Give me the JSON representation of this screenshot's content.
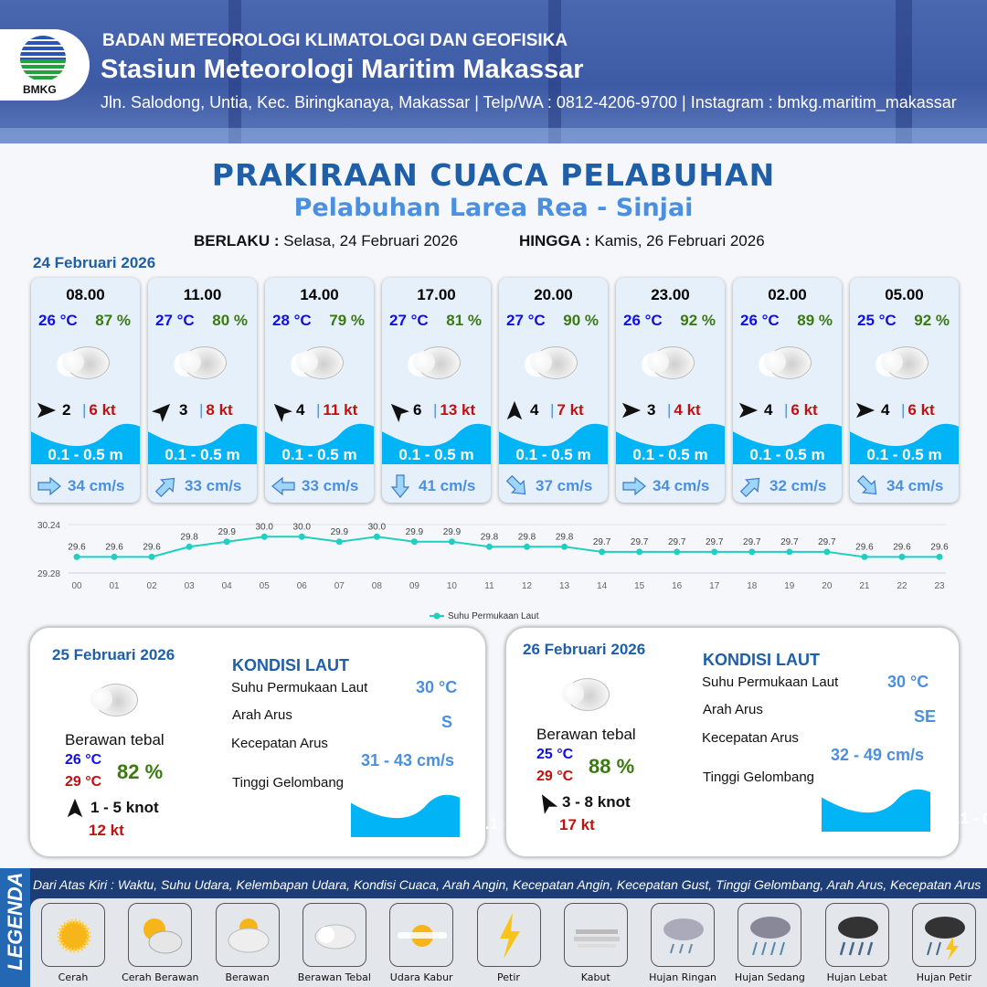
{
  "header": {
    "agency": "BADAN METEOROLOGI KLIMATOLOGI DAN GEOFISIKA",
    "station": "Stasiun Meteorologi Maritim Makassar",
    "contact": "Jln. Salodong, Untia, Kec. Biringkanaya, Makassar | Telp/WA : 0812-4206-9700 | Instagram : bmkg.maritim_makassar",
    "logo_text": "BMKG"
  },
  "title": "PRAKIRAAN CUACA PELABUHAN",
  "subtitle": "Pelabuhan Larea Rea - Sinjai",
  "validity": {
    "from_label": "BERLAKU :",
    "from": "Selasa, 24 Februari 2026",
    "to_label": "HINGGA :",
    "to": "Kamis, 26 Februari 2026"
  },
  "day1": {
    "date": "24 Februari 2026",
    "condition_icon": "cloud-icon",
    "forecasts": [
      {
        "time": "08.00",
        "temp": "26 °C",
        "rh": "87 %",
        "wind_dir_deg": 0,
        "wind": "2",
        "gust": "6 kt",
        "wave": "0.1 - 0.5 m",
        "current_dir_deg": 0,
        "current": "34 cm/s"
      },
      {
        "time": "11.00",
        "temp": "27 °C",
        "rh": "80 %",
        "wind_dir_deg": -45,
        "wind": "3",
        "gust": "8 kt",
        "wave": "0.1 - 0.5 m",
        "current_dir_deg": -45,
        "current": "33 cm/s"
      },
      {
        "time": "14.00",
        "temp": "28 °C",
        "rh": "79 %",
        "wind_dir_deg": -135,
        "wind": "4",
        "gust": "11 kt",
        "wave": "0.1 - 0.5 m",
        "current_dir_deg": 180,
        "current": "33 cm/s"
      },
      {
        "time": "17.00",
        "temp": "27 °C",
        "rh": "81 %",
        "wind_dir_deg": -135,
        "wind": "6",
        "gust": "13 kt",
        "wave": "0.1 - 0.5 m",
        "current_dir_deg": 90,
        "current": "41 cm/s"
      },
      {
        "time": "20.00",
        "temp": "27 °C",
        "rh": "90 %",
        "wind_dir_deg": -90,
        "wind": "4",
        "gust": "7 kt",
        "wave": "0.1 - 0.5 m",
        "current_dir_deg": 45,
        "current": "37 cm/s"
      },
      {
        "time": "23.00",
        "temp": "26 °C",
        "rh": "92 %",
        "wind_dir_deg": 0,
        "wind": "3",
        "gust": "4 kt",
        "wave": "0.1 - 0.5 m",
        "current_dir_deg": 0,
        "current": "34 cm/s"
      },
      {
        "time": "02.00",
        "temp": "26 °C",
        "rh": "89 %",
        "wind_dir_deg": 0,
        "wind": "4",
        "gust": "6 kt",
        "wave": "0.1 - 0.5 m",
        "current_dir_deg": -45,
        "current": "32 cm/s"
      },
      {
        "time": "05.00",
        "temp": "25 °C",
        "rh": "92 %",
        "wind_dir_deg": 0,
        "wind": "4",
        "gust": "6 kt",
        "wave": "0.1 - 0.5 m",
        "current_dir_deg": 45,
        "current": "34 cm/s"
      }
    ]
  },
  "chart_data": {
    "type": "line",
    "categories": [
      "00",
      "01",
      "02",
      "03",
      "04",
      "05",
      "06",
      "07",
      "08",
      "09",
      "10",
      "11",
      "12",
      "13",
      "14",
      "15",
      "16",
      "17",
      "18",
      "19",
      "20",
      "21",
      "22",
      "23"
    ],
    "series": [
      {
        "name": "Suhu Permukaan Laut",
        "values": [
          29.6,
          29.6,
          29.6,
          29.8,
          29.9,
          30.0,
          30.0,
          29.9,
          30.0,
          29.9,
          29.9,
          29.8,
          29.8,
          29.8,
          29.7,
          29.7,
          29.7,
          29.7,
          29.7,
          29.7,
          29.7,
          29.6,
          29.6,
          29.6
        ],
        "color": "#1fcfbf"
      }
    ],
    "ylim": [
      29.28,
      30.24
    ],
    "yticks": [
      "30.24",
      "29.28"
    ],
    "legend": "bottom-center",
    "grid": true
  },
  "days": [
    {
      "date": "25 Februari 2026",
      "condition": "Berawan tebal",
      "tmin": "26 °C",
      "tmax": "29 °C",
      "rh": "82 %",
      "wind_dir_deg": -90,
      "wind": "1  - 5 knot",
      "gust": "12 kt",
      "sea_title": "KONDISI LAUT",
      "sst_label": "Suhu Permukaan Laut",
      "sst": "30 °C",
      "dir_label": "Arah Arus",
      "dir": "S",
      "current_dir_deg": 90,
      "speed_label": "Kecepatan Arus",
      "speed": "31 - 43 cm/s",
      "wave_label": "Tinggi Gelombang",
      "wave": "0.1 - 0.5 m"
    },
    {
      "date": "26 Februari 2026",
      "condition": "Berawan tebal",
      "tmin": "25 °C",
      "tmax": "29 °C",
      "rh": "88 %",
      "wind_dir_deg": -120,
      "wind": "3  - 8 knot",
      "gust": "17 kt",
      "sea_title": "KONDISI LAUT",
      "sst_label": "Suhu Permukaan Laut",
      "sst": "30 °C",
      "dir_label": "Arah Arus",
      "dir": "SE",
      "current_dir_deg": 45,
      "speed_label": "Kecepatan Arus",
      "speed": "32 - 49 cm/s",
      "wave_label": "Tinggi Gelombang",
      "wave": "0.1 - 0.5 m"
    }
  ],
  "legend": {
    "title": "LEGENDA",
    "description": "Dari Atas Kiri : Waktu, Suhu Udara, Kelembapan Udara, Kondisi Cuaca, Arah Angin, Kecepatan Angin, Kecepatan Gust, Tinggi Gelombang, Arah Arus, Kecepatan Arus",
    "items": [
      "Cerah",
      "Cerah Berawan",
      "Berawan",
      "Berawan Tebal",
      "Udara Kabur",
      "Petir",
      "Kabut",
      "Hujan Ringan",
      "Hujan Sedang",
      "Hujan Lebat",
      "Hujan Petir"
    ]
  },
  "colors": {
    "brand": "#1f5fa8",
    "temp": "#1010e0",
    "humidity": "#3b7a10",
    "gust": "#c01010",
    "wave": "#00b4f5",
    "current": "#4a8fe0"
  }
}
